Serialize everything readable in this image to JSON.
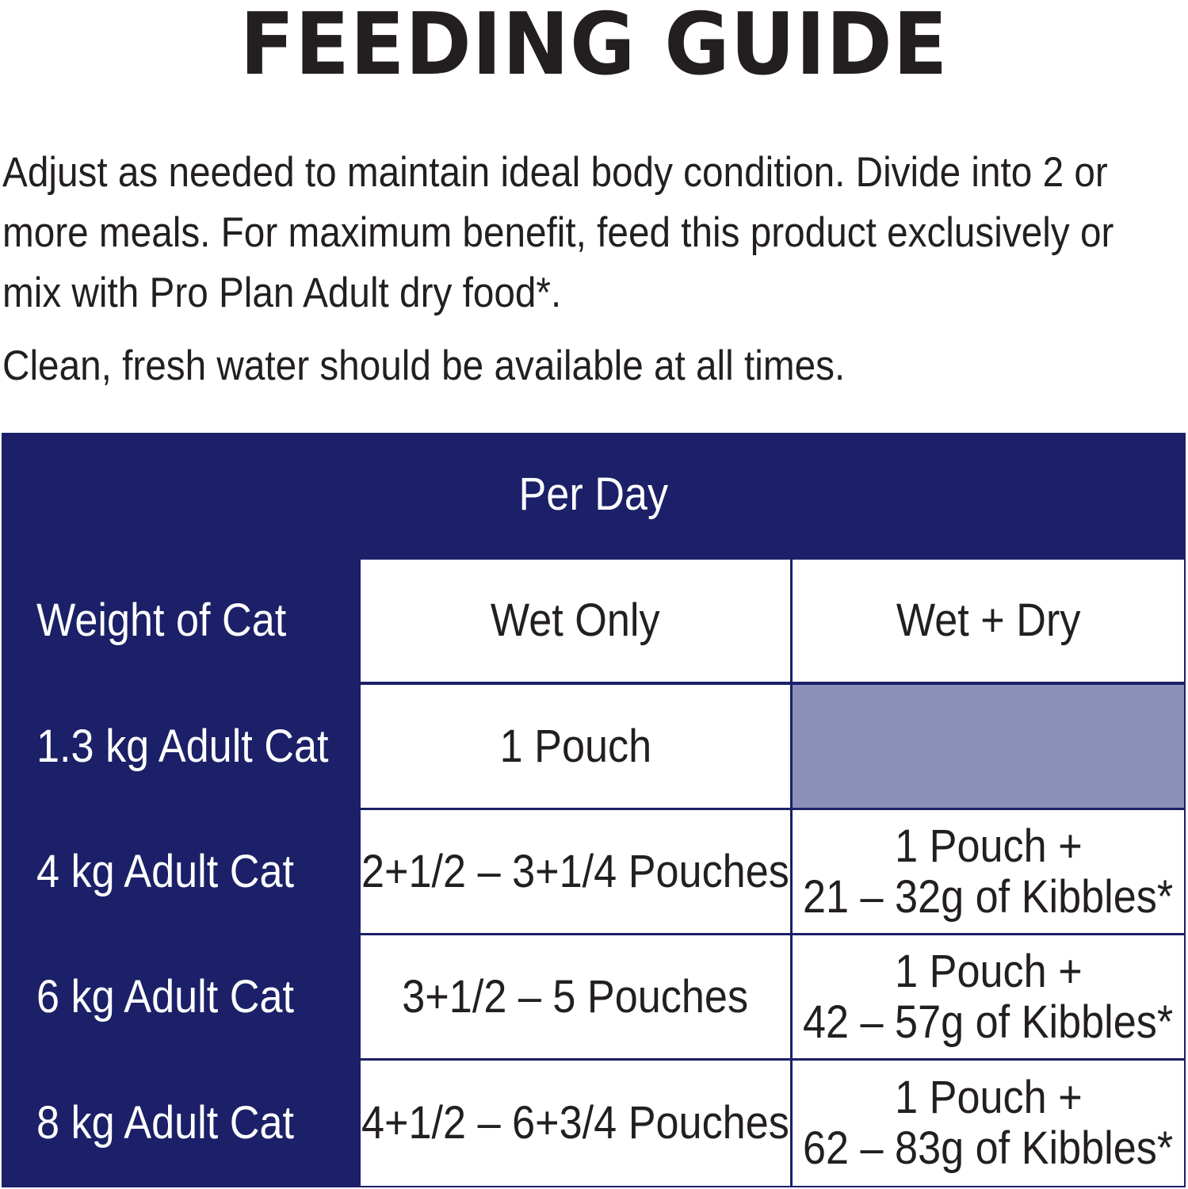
{
  "title": "FEEDING GUIDE",
  "intro": "Adjust as needed to maintain ideal body condition. Divide into 2 or more meals. For maximum benefit, feed this product exclusively or mix with Pro Plan Adult dry food*.",
  "water_note": "Clean, fresh water should be available at all times.",
  "table": {
    "banner": "Per Day",
    "headers": {
      "weight": "Weight of Cat",
      "wet_only": "Wet Only",
      "wet_dry": "Wet + Dry"
    },
    "rows": [
      {
        "weight": "1.3 kg Adult Cat",
        "wet_only": "1 Pouch",
        "wet_dry_line1": "",
        "wet_dry_line2": ""
      },
      {
        "weight": "4 kg Adult Cat",
        "wet_only": "2+1/2 – 3+1/4 Pouches",
        "wet_dry_line1": "1 Pouch +",
        "wet_dry_line2": "21 – 32g of Kibbles*"
      },
      {
        "weight": "6 kg Adult Cat",
        "wet_only": "3+1/2 – 5 Pouches",
        "wet_dry_line1": "1 Pouch +",
        "wet_dry_line2": "42 – 57g of Kibbles*"
      },
      {
        "weight": "8 kg Adult Cat",
        "wet_only": "4+1/2 – 6+3/4 Pouches",
        "wet_dry_line1": "1 Pouch +",
        "wet_dry_line2": "62 – 83g of Kibbles*"
      }
    ]
  },
  "colors": {
    "navy": "#1b2068",
    "lavender": "#8a90b8",
    "text": "#231f20"
  }
}
